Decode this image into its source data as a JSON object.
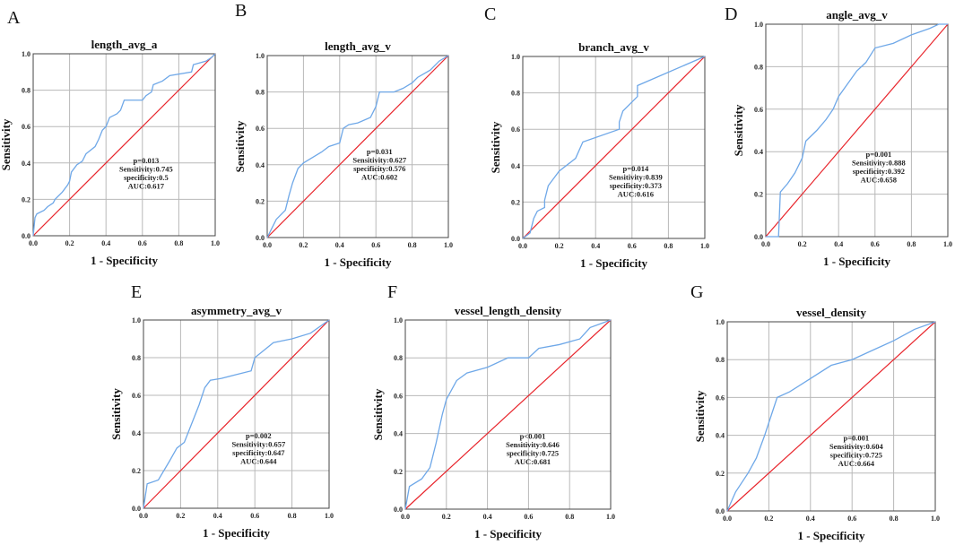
{
  "chart_data": [
    {
      "panel": "A",
      "type": "line",
      "title": "length_avg_a",
      "xlabel": "1 - Specificity",
      "ylabel": "Sensitivity",
      "xlim": [
        0,
        1
      ],
      "ylim": [
        0,
        1
      ],
      "grid": true,
      "ticks": [
        "0.0",
        "0.2",
        "0.4",
        "0.6",
        "0.8",
        "1.0"
      ],
      "annotation": [
        "p=0.013",
        "Sensitivity:0.745",
        "specificity:0.5",
        "AUC:0.617"
      ],
      "roc": [
        [
          0,
          0
        ],
        [
          0.01,
          0.1
        ],
        [
          0.02,
          0.12
        ],
        [
          0.06,
          0.14
        ],
        [
          0.08,
          0.16
        ],
        [
          0.11,
          0.18
        ],
        [
          0.12,
          0.2
        ],
        [
          0.16,
          0.24
        ],
        [
          0.19,
          0.28
        ],
        [
          0.2,
          0.3
        ],
        [
          0.21,
          0.35
        ],
        [
          0.24,
          0.39
        ],
        [
          0.27,
          0.41
        ],
        [
          0.29,
          0.45
        ],
        [
          0.34,
          0.49
        ],
        [
          0.36,
          0.53
        ],
        [
          0.38,
          0.58
        ],
        [
          0.4,
          0.6
        ],
        [
          0.42,
          0.65
        ],
        [
          0.46,
          0.67
        ],
        [
          0.48,
          0.69
        ],
        [
          0.5,
          0.745
        ],
        [
          0.6,
          0.745
        ],
        [
          0.62,
          0.77
        ],
        [
          0.65,
          0.79
        ],
        [
          0.66,
          0.83
        ],
        [
          0.71,
          0.85
        ],
        [
          0.75,
          0.88
        ],
        [
          0.87,
          0.9
        ],
        [
          0.88,
          0.94
        ],
        [
          0.95,
          0.96
        ],
        [
          0.98,
          0.98
        ],
        [
          1,
          1
        ]
      ]
    },
    {
      "panel": "B",
      "type": "line",
      "title": "length_avg_v",
      "xlabel": "1 - Specificity",
      "ylabel": "Sensitivity",
      "xlim": [
        0,
        1
      ],
      "ylim": [
        0,
        1
      ],
      "grid": true,
      "ticks": [
        "0.0",
        "0.2",
        "0.4",
        "0.6",
        "0.8",
        "1.0"
      ],
      "annotation": [
        "p=0.031",
        "Sensitivity:0.627",
        "specificity:0.576",
        "AUC:0.602"
      ],
      "roc": [
        [
          0,
          0
        ],
        [
          0.05,
          0.1
        ],
        [
          0.1,
          0.15
        ],
        [
          0.12,
          0.23
        ],
        [
          0.14,
          0.3
        ],
        [
          0.17,
          0.38
        ],
        [
          0.2,
          0.41
        ],
        [
          0.25,
          0.44
        ],
        [
          0.3,
          0.47
        ],
        [
          0.34,
          0.5
        ],
        [
          0.4,
          0.52
        ],
        [
          0.42,
          0.6
        ],
        [
          0.45,
          0.62
        ],
        [
          0.5,
          0.63
        ],
        [
          0.57,
          0.66
        ],
        [
          0.6,
          0.72
        ],
        [
          0.62,
          0.8
        ],
        [
          0.7,
          0.8
        ],
        [
          0.75,
          0.82
        ],
        [
          0.8,
          0.85
        ],
        [
          0.83,
          0.88
        ],
        [
          0.9,
          0.92
        ],
        [
          0.95,
          0.97
        ],
        [
          1,
          1
        ]
      ]
    },
    {
      "panel": "C",
      "type": "line",
      "title": "branch_avg_v",
      "xlabel": "1 - Specificity",
      "ylabel": "Sensitivity",
      "xlim": [
        0,
        1
      ],
      "ylim": [
        0,
        1
      ],
      "grid": true,
      "ticks": [
        "0.0",
        "0.2",
        "0.4",
        "0.6",
        "0.8",
        "1.0"
      ],
      "annotation": [
        "p=0.014",
        "Sensitivity:0.839",
        "specificity:0.373",
        "AUC:0.616"
      ],
      "roc": [
        [
          0,
          0
        ],
        [
          0.04,
          0.03
        ],
        [
          0.06,
          0.11
        ],
        [
          0.08,
          0.15
        ],
        [
          0.12,
          0.17
        ],
        [
          0.12,
          0.21
        ],
        [
          0.14,
          0.29
        ],
        [
          0.2,
          0.37
        ],
        [
          0.29,
          0.44
        ],
        [
          0.33,
          0.53
        ],
        [
          0.53,
          0.6
        ],
        [
          0.53,
          0.64
        ],
        [
          0.55,
          0.7
        ],
        [
          0.63,
          0.78
        ],
        [
          0.63,
          0.84
        ],
        [
          1,
          1
        ]
      ]
    },
    {
      "panel": "D",
      "type": "line",
      "title": "angle_avg_v",
      "xlabel": "1 - Specificity",
      "ylabel": "Sensitivity",
      "xlim": [
        0,
        1
      ],
      "ylim": [
        0,
        1
      ],
      "grid": true,
      "ticks": [
        "0.0",
        "0.2",
        "0.4",
        "0.6",
        "0.8",
        "1.0"
      ],
      "annotation": [
        "p=0.001",
        "Sensitivity:0.888",
        "specificity:0.392",
        "AUC:0.658"
      ],
      "roc": [
        [
          0,
          0
        ],
        [
          0.07,
          0
        ],
        [
          0.08,
          0.21
        ],
        [
          0.12,
          0.25
        ],
        [
          0.16,
          0.3
        ],
        [
          0.2,
          0.37
        ],
        [
          0.22,
          0.45
        ],
        [
          0.28,
          0.5
        ],
        [
          0.33,
          0.55
        ],
        [
          0.37,
          0.6
        ],
        [
          0.4,
          0.66
        ],
        [
          0.45,
          0.72
        ],
        [
          0.5,
          0.78
        ],
        [
          0.55,
          0.82
        ],
        [
          0.6,
          0.888
        ],
        [
          0.7,
          0.91
        ],
        [
          0.8,
          0.95
        ],
        [
          0.9,
          0.98
        ],
        [
          0.95,
          1
        ],
        [
          1,
          1
        ]
      ]
    },
    {
      "panel": "E",
      "type": "line",
      "title": "asymmetry_avg_v",
      "xlabel": "1 - Specificity",
      "ylabel": "Sensitivity",
      "xlim": [
        0,
        1
      ],
      "ylim": [
        0,
        1
      ],
      "grid": true,
      "ticks": [
        "0.0",
        "0.2",
        "0.4",
        "0.6",
        "0.8",
        "1.0"
      ],
      "annotation": [
        "p=0.002",
        "Sensitivity:0.657",
        "specificity:0.647",
        "AUC:0.644"
      ],
      "roc": [
        [
          0,
          0
        ],
        [
          0.02,
          0.13
        ],
        [
          0.08,
          0.15
        ],
        [
          0.14,
          0.25
        ],
        [
          0.18,
          0.32
        ],
        [
          0.22,
          0.35
        ],
        [
          0.26,
          0.45
        ],
        [
          0.3,
          0.55
        ],
        [
          0.33,
          0.64
        ],
        [
          0.36,
          0.68
        ],
        [
          0.42,
          0.69
        ],
        [
          0.5,
          0.71
        ],
        [
          0.58,
          0.73
        ],
        [
          0.6,
          0.8
        ],
        [
          0.65,
          0.84
        ],
        [
          0.7,
          0.88
        ],
        [
          0.8,
          0.9
        ],
        [
          0.9,
          0.93
        ],
        [
          1,
          1
        ]
      ]
    },
    {
      "panel": "F",
      "type": "line",
      "title": "vessel_length_density",
      "xlabel": "1 - Specificity",
      "ylabel": "Sensitivity",
      "xlim": [
        0,
        1
      ],
      "ylim": [
        0,
        1
      ],
      "grid": true,
      "ticks": [
        "0.0",
        "0.2",
        "0.4",
        "0.6",
        "0.8",
        "1.0"
      ],
      "annotation": [
        "p<0.001",
        "Sensitivity:0.646",
        "specificity:0.725",
        "AUC:0.681"
      ],
      "roc": [
        [
          0,
          0
        ],
        [
          0.02,
          0.12
        ],
        [
          0.08,
          0.16
        ],
        [
          0.12,
          0.22
        ],
        [
          0.15,
          0.35
        ],
        [
          0.18,
          0.5
        ],
        [
          0.2,
          0.58
        ],
        [
          0.25,
          0.68
        ],
        [
          0.3,
          0.72
        ],
        [
          0.4,
          0.75
        ],
        [
          0.5,
          0.8
        ],
        [
          0.6,
          0.8
        ],
        [
          0.65,
          0.85
        ],
        [
          0.75,
          0.87
        ],
        [
          0.85,
          0.9
        ],
        [
          0.9,
          0.96
        ],
        [
          1,
          1
        ]
      ]
    },
    {
      "panel": "G",
      "type": "line",
      "title": "vessel_density",
      "xlabel": "1 - Specificity",
      "ylabel": "Sensitivity",
      "xlim": [
        0,
        1
      ],
      "ylim": [
        0,
        1
      ],
      "grid": true,
      "ticks": [
        "0.0",
        "0.2",
        "0.4",
        "0.6",
        "0.8",
        "1.0"
      ],
      "annotation": [
        "p=0.001",
        "Sensitivity:0.604",
        "specificity:0.725",
        "AUC:0.664"
      ],
      "roc": [
        [
          0,
          0
        ],
        [
          0.04,
          0.1
        ],
        [
          0.1,
          0.2
        ],
        [
          0.14,
          0.28
        ],
        [
          0.18,
          0.4
        ],
        [
          0.21,
          0.5
        ],
        [
          0.24,
          0.6
        ],
        [
          0.3,
          0.63
        ],
        [
          0.4,
          0.7
        ],
        [
          0.5,
          0.77
        ],
        [
          0.6,
          0.8
        ],
        [
          0.7,
          0.85
        ],
        [
          0.8,
          0.9
        ],
        [
          0.9,
          0.96
        ],
        [
          1,
          1
        ]
      ]
    }
  ],
  "colors": {
    "roc": "#6fa8e8",
    "diagonal": "#e8242b",
    "grid": "#b8b8b8",
    "frame": "#444444"
  }
}
